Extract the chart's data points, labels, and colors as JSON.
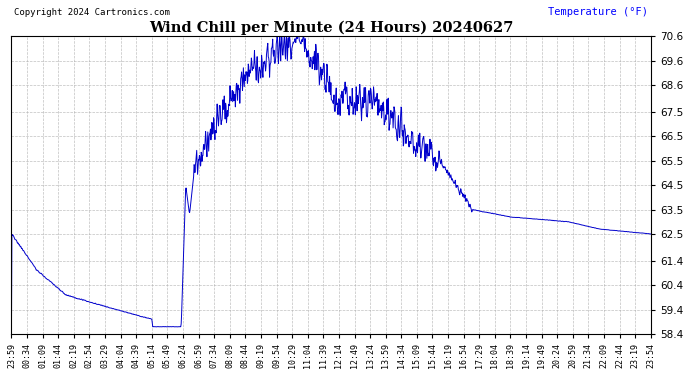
{
  "title": "Wind Chill per Minute (24 Hours) 20240627",
  "ylabel": "Temperature (°F)",
  "copyright": "Copyright 2024 Cartronics.com",
  "line_color": "#0000cc",
  "background_color": "#ffffff",
  "grid_color": "#b0b0b0",
  "ylim_min": 58.4,
  "ylim_max": 70.6,
  "yticks": [
    58.4,
    59.4,
    60.4,
    61.4,
    62.5,
    63.5,
    64.5,
    65.5,
    66.5,
    67.5,
    68.6,
    69.6,
    70.6
  ],
  "x_labels": [
    "23:59",
    "00:34",
    "01:09",
    "01:44",
    "02:19",
    "02:54",
    "03:29",
    "04:04",
    "04:39",
    "05:14",
    "05:49",
    "06:24",
    "06:59",
    "07:34",
    "08:09",
    "08:44",
    "09:19",
    "09:54",
    "10:29",
    "11:04",
    "11:39",
    "12:14",
    "12:49",
    "13:24",
    "13:59",
    "14:34",
    "15:09",
    "15:44",
    "16:19",
    "16:54",
    "17:29",
    "18:04",
    "18:39",
    "19:14",
    "19:49",
    "20:24",
    "20:59",
    "21:34",
    "22:09",
    "22:44",
    "23:19",
    "23:54"
  ],
  "n_points": 1440,
  "figwidth": 6.9,
  "figheight": 3.75,
  "dpi": 100
}
